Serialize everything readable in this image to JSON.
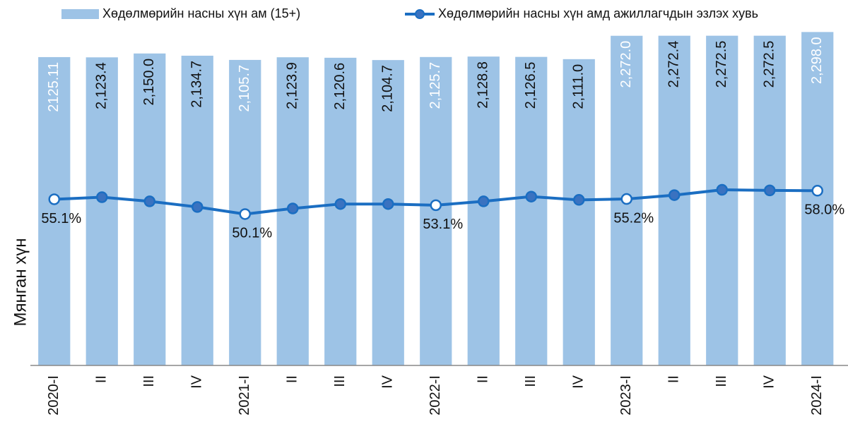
{
  "chart_data": {
    "type": "bar_line",
    "y_axis_label": "Мянган хүн",
    "categories": [
      "2020-I",
      "II",
      "III",
      "IV",
      "2021-I",
      "II",
      "III",
      "IV",
      "2022-I",
      "II",
      "III",
      "IV",
      "2023-I",
      "II",
      "III",
      "IV",
      "2024-I"
    ],
    "series": [
      {
        "name": "Хөдөлмөрийн насны хүн ам (15+)",
        "type": "bar",
        "color": "#9dc3e6",
        "values": [
          2125.11,
          2123.4,
          2150.0,
          2134.7,
          2105.7,
          2123.9,
          2120.6,
          2104.7,
          2125.7,
          2128.8,
          2126.5,
          2111.0,
          2272.0,
          2272.4,
          2272.5,
          2272.5,
          2298.0
        ],
        "value_labels": [
          "2125.11",
          "2,123.4",
          "2,150.0",
          "2,134.7",
          "2,105.7",
          "2,123.9",
          "2,120.6",
          "2,104.7",
          "2,125.7",
          "2,128.8",
          "2,126.5",
          "2,111.0",
          "2,272.0",
          "2,272.4",
          "2,272.5",
          "2,272.5",
          "2,298.0"
        ]
      },
      {
        "name": "Хөдөлмөрийн насны хүн амд ажиллагчдын эзлэх хувь",
        "type": "line",
        "axis": "y2",
        "color": "#1b6ec2",
        "values": [
          55.1,
          55.8,
          54.4,
          52.5,
          50.1,
          52.0,
          53.5,
          53.5,
          53.1,
          54.4,
          56.0,
          54.9,
          55.2,
          56.5,
          58.3,
          58.1,
          58.0
        ],
        "value_labels": [
          "55.1%",
          null,
          null,
          null,
          "50.1%",
          null,
          null,
          null,
          "53.1%",
          null,
          null,
          null,
          "55.2%",
          null,
          null,
          null,
          "58.0%"
        ]
      }
    ],
    "ylim": [
      0,
      2470
    ],
    "y2lim": [
      -1,
      120
    ],
    "legend": "top",
    "bar_label_color": "#111111",
    "highlight_bar_label_color": "#ffffff",
    "marker_color": "#3a72c0",
    "highlight_marker_color": "#ffffff"
  }
}
